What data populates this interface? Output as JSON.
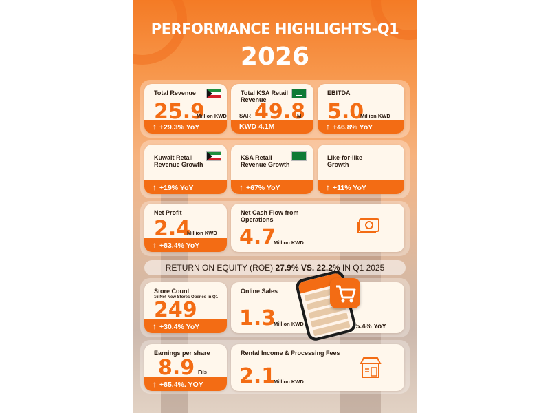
{
  "header": {
    "title": "PERFORMANCE HIGHLIGHTS-Q1",
    "year": "2026"
  },
  "row1": {
    "total_revenue": {
      "label": "Total Revenue",
      "value": "25.9",
      "unit": "Million KWD",
      "change": "+29.3% YoY"
    },
    "ksa_revenue": {
      "label": "Total KSA Retail Revenue",
      "prefix": "SAR",
      "value": "49.8",
      "unit": "M",
      "footer": "KWD 4.1M"
    },
    "ebitda": {
      "label": "EBITDA",
      "value": "5.0",
      "unit": "Million KWD",
      "change": "+46.8% YoY"
    }
  },
  "row2": {
    "kuwait_growth": {
      "label": "Kuwait Retail Revenue Growth",
      "change": "+19% YoY"
    },
    "ksa_growth": {
      "label": "KSA Retail Revenue Growth",
      "change": "+67% YoY"
    },
    "lfl": {
      "label": "Like-for-like Growth",
      "change": "+11% YoY"
    }
  },
  "row3": {
    "net_profit": {
      "label": "Net Profit",
      "value": "2.4",
      "unit": "Million KWD",
      "change": "+83.4% YoY"
    },
    "cash_flow": {
      "label": "Net Cash Flow from Operations",
      "value": "4.7",
      "unit": "Million KWD"
    }
  },
  "roe": {
    "prefix": "RETURN ON EQUITY (ROE)",
    "highlight": "27.9% VS. 22.2%",
    "suffix": "IN Q1 2025"
  },
  "row4": {
    "store_count": {
      "label": "Store Count",
      "sublabel": "16 Net New Stores Opened in Q1",
      "value": "249",
      "change": "+30.4% YoY"
    },
    "online": {
      "label": "Online Sales",
      "value": "1.3",
      "unit": "Million KWD",
      "change": "+5.4% YoY"
    }
  },
  "row5": {
    "eps": {
      "label": "Earnings per share",
      "value": "8.9",
      "unit": "Fils",
      "change": "+85.4%. YOY"
    },
    "rental": {
      "label": "Rental Income & Processing Fees",
      "value": "2.1",
      "unit": "Million KWD"
    }
  },
  "icons": {
    "up_arrow": "up-arrow-icon",
    "money": "money-icon",
    "store": "store-icon",
    "cart": "cart-icon"
  },
  "colors": {
    "accent": "#f36c14",
    "card": "#fff7ec"
  }
}
